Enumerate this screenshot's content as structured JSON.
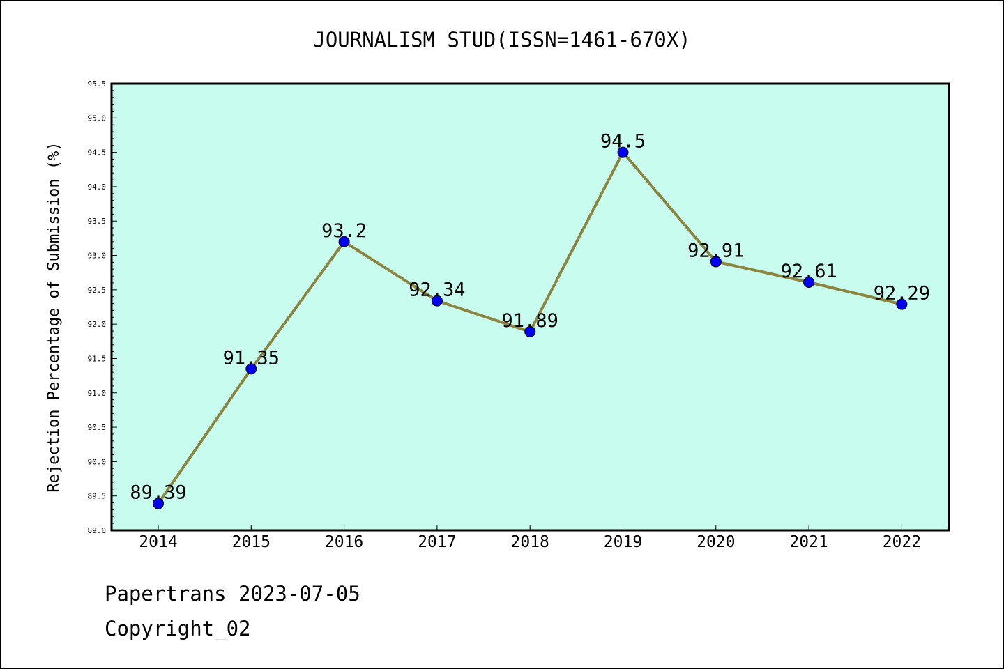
{
  "chart_data": {
    "type": "line",
    "title": "JOURNALISM STUD(ISSN=1461-670X)",
    "ylabel": "Rejection Percentage of Submission (%)",
    "xlabel": "",
    "x": [
      "2014",
      "2015",
      "2016",
      "2017",
      "2018",
      "2019",
      "2020",
      "2021",
      "2022"
    ],
    "series": [
      {
        "values": [
          89.39,
          91.35,
          93.2,
          92.34,
          91.89,
          94.5,
          92.91,
          92.61,
          92.29
        ],
        "labels": [
          "89.39",
          "91.35",
          "93.2",
          "92.34",
          "91.89",
          "94.5",
          "92.91",
          "92.61",
          "92.29"
        ]
      }
    ],
    "ylim": [
      89.0,
      95.5
    ],
    "yticks": [
      "89.0",
      "89.5",
      "90.0",
      "90.5",
      "91.0",
      "91.5",
      "92.0",
      "92.5",
      "93.0",
      "93.5",
      "94.0",
      "94.5",
      "95.0",
      "95.5"
    ],
    "grid": false,
    "colors": {
      "plot_background": "#c8fcef",
      "line": "#8b8540",
      "marker": "#0000ee"
    }
  },
  "footer": {
    "line1": "Papertrans 2023-07-05",
    "line2": "Copyright_02"
  }
}
